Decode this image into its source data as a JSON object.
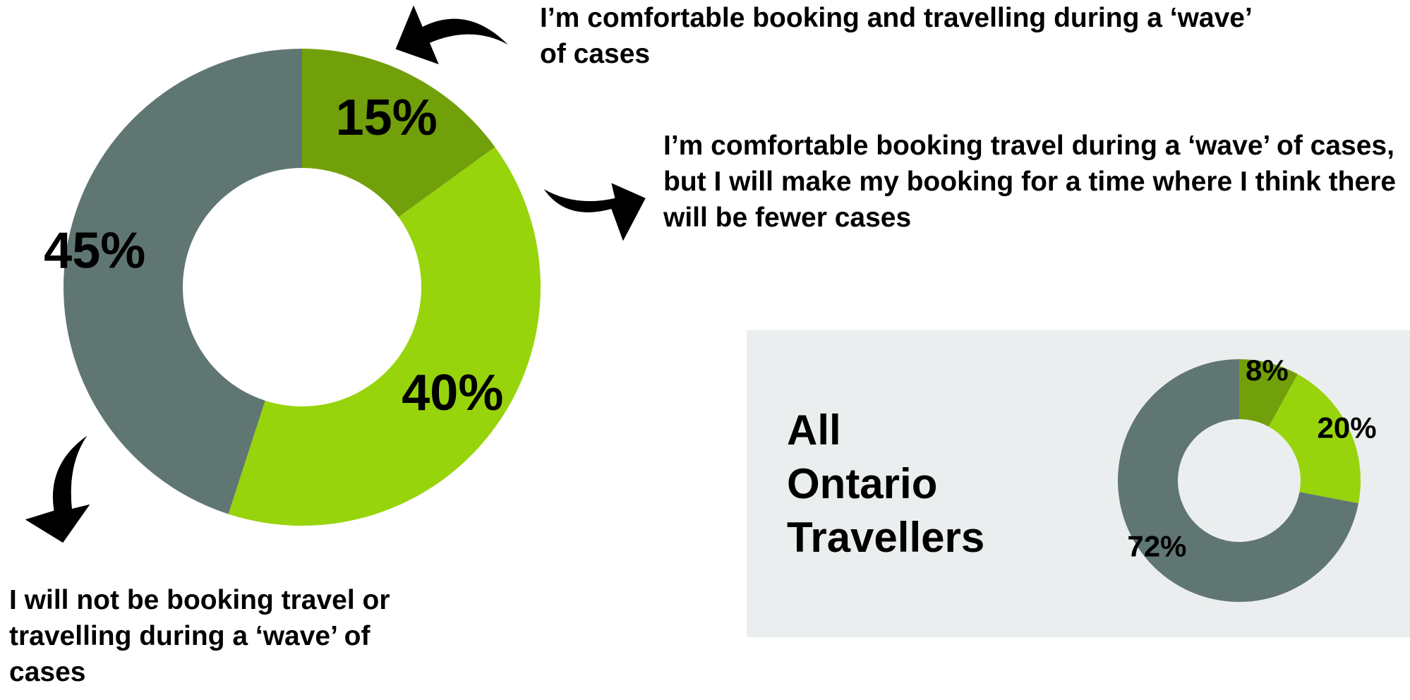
{
  "chart_data": [
    {
      "type": "pie",
      "categories": [
        "I’m comfortable booking and travelling during a ‘wave’ of cases",
        "I’m comfortable booking travel during a ‘wave’ of cases, but I will make my booking for a time where I think there will be fewer cases",
        "I will not be booking travel or travelling during a ‘wave’ of cases"
      ],
      "values": [
        15,
        40,
        45
      ],
      "value_labels": [
        "15%",
        "40%",
        "45%"
      ],
      "colors": [
        "#72a00a",
        "#97d40c",
        "#607673"
      ]
    },
    {
      "type": "pie",
      "title": "All Ontario Travellers",
      "values": [
        8,
        20,
        72
      ],
      "value_labels": [
        "8%",
        "20%",
        "72%"
      ],
      "colors": [
        "#72a00a",
        "#97d40c",
        "#607673"
      ]
    }
  ]
}
